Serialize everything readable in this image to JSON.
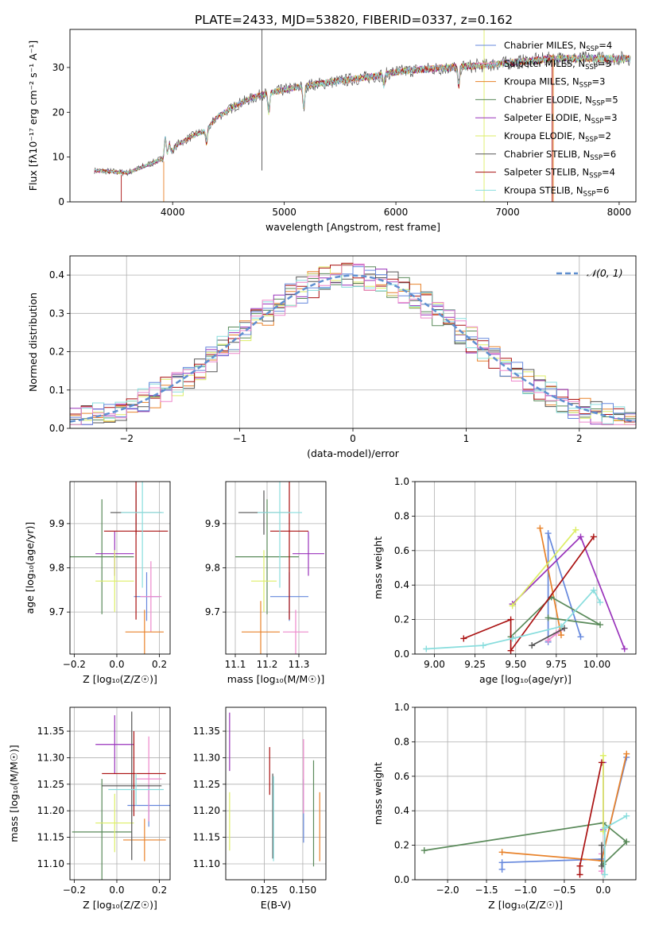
{
  "figure": {
    "title": "PLATE=2433, MJD=53820, FIBERID=0337, z=0.162"
  },
  "models": [
    {
      "name": "Chabrier MILES",
      "nssp": "4",
      "color": "#6688dd"
    },
    {
      "name": "Salpeter MILES",
      "nssp": "3",
      "color": "#ee88cc"
    },
    {
      "name": "Kroupa MILES",
      "nssp": "3",
      "color": "#e8822a"
    },
    {
      "name": "Chabrier ELODIE",
      "nssp": "5",
      "color": "#5a8a5a"
    },
    {
      "name": "Salpeter ELODIE",
      "nssp": "3",
      "color": "#9933bb"
    },
    {
      "name": "Kroupa ELODIE",
      "nssp": "2",
      "color": "#ddee66"
    },
    {
      "name": "Chabrier STELIB",
      "nssp": "6",
      "color": "#555555"
    },
    {
      "name": "Salpeter STELIB",
      "nssp": "4",
      "color": "#aa1111"
    },
    {
      "name": "Kroupa STELIB",
      "nssp": "6",
      "color": "#88dddd"
    }
  ],
  "chart_data": [
    {
      "id": "spectrum",
      "type": "line",
      "xlabel": "wavelength [Angstrom, rest frame]",
      "ylabel": "Flux [fλ10⁻¹⁷ erg cm⁻² s⁻¹ A⁻¹]",
      "xlim": [
        3080,
        8150
      ],
      "ylim": [
        0,
        38.5
      ],
      "xticks": [
        4000,
        5000,
        6000,
        7000,
        8000
      ],
      "yticks": [
        0,
        10,
        20,
        30
      ],
      "continuum": {
        "x": [
          3300,
          3600,
          3700,
          3850,
          3950,
          4050,
          4200,
          4300,
          4400,
          4600,
          4800,
          5000,
          5200,
          5500,
          5800,
          6000,
          6200,
          6500,
          6800,
          7000,
          7200,
          7400,
          7600,
          7800,
          8000,
          8100
        ],
        "y": [
          7,
          6.5,
          7.5,
          9,
          10,
          13,
          15,
          16,
          19,
          22,
          24,
          25,
          26,
          27,
          28,
          29,
          29.5,
          30,
          30.5,
          31,
          31.5,
          32,
          32,
          32,
          32,
          32
        ]
      },
      "absorption_lines": [
        {
          "x": 3934,
          "y": 14.5
        },
        {
          "x": 3969,
          "y": 13
        },
        {
          "x": 4102,
          "y": 13.5
        },
        {
          "x": 4304,
          "y": 13
        },
        {
          "x": 4861,
          "y": 20
        },
        {
          "x": 5175,
          "y": 21
        },
        {
          "x": 5893,
          "y": 26
        },
        {
          "x": 6563,
          "y": 26
        }
      ]
    },
    {
      "id": "residual-hist",
      "type": "line",
      "xlabel": "(data-model)/error",
      "ylabel": "Normed distribution",
      "xlim": [
        -2.5,
        2.5
      ],
      "ylim": [
        0,
        0.45
      ],
      "xticks": [
        -2,
        -1,
        0,
        1,
        2
      ],
      "yticks": [
        0.0,
        0.1,
        0.2,
        0.3,
        0.4
      ],
      "legend": "𝒩(0, 1)",
      "legend_position": "top-right",
      "bin_width": 0.1
    },
    {
      "id": "z-vs-age",
      "type": "scatter",
      "xlabel": "Z [log₁₀(Z/Z☉)]",
      "ylabel": "age  [log₁₀(age/yr)]",
      "xlim": [
        -0.22,
        0.25
      ],
      "ylim": [
        9.605,
        9.995
      ],
      "xticks": [
        -0.2,
        0.0,
        0.2
      ],
      "yticks": [
        9.7,
        9.8,
        9.9
      ],
      "points": [
        {
          "m": 0,
          "x": 0.14,
          "y": 9.735,
          "xerr": 0.06,
          "yerr": 0.055
        },
        {
          "m": 1,
          "x": 0.16,
          "y": 9.735,
          "xerr": 0.05,
          "yerr": 0.08
        },
        {
          "m": 2,
          "x": 0.13,
          "y": 9.655,
          "xerr": 0.09,
          "yerr": 0.05
        },
        {
          "m": 3,
          "x": -0.07,
          "y": 9.825,
          "xerr": 0.15,
          "yerr": 0.13
        },
        {
          "m": 4,
          "x": -0.01,
          "y": 9.832,
          "xerr": 0.09,
          "yerr": 0.05
        },
        {
          "m": 5,
          "x": -0.01,
          "y": 9.77,
          "xerr": 0.09,
          "yerr": 0.07
        },
        {
          "m": 6,
          "x": 0.09,
          "y": 9.925,
          "xerr": 0.12,
          "yerr": 0.05
        },
        {
          "m": 7,
          "x": 0.09,
          "y": 9.883,
          "xerr": 0.15,
          "yerr": 0.2
        },
        {
          "m": 8,
          "x": 0.12,
          "y": 9.925,
          "xerr": 0.1,
          "yerr": 0.17
        }
      ]
    },
    {
      "id": "mass-vs-age",
      "type": "scatter",
      "xlabel": "mass [log₁₀(M/M☉)]",
      "ylabel": "",
      "xlim": [
        11.07,
        11.385
      ],
      "ylim": [
        9.605,
        9.995
      ],
      "xticks": [
        11.1,
        11.2,
        11.3
      ],
      "yticks": [
        9.7,
        9.8,
        9.9
      ],
      "points": [
        {
          "m": 0,
          "x": 11.27,
          "y": 9.735,
          "xerr": 0.06,
          "yerr": 0.055
        },
        {
          "m": 1,
          "x": 11.29,
          "y": 9.655,
          "xerr": 0.04,
          "yerr": 0.05
        },
        {
          "m": 2,
          "x": 11.18,
          "y": 9.655,
          "xerr": 0.06,
          "yerr": 0.07
        },
        {
          "m": 3,
          "x": 11.2,
          "y": 9.825,
          "xerr": 0.1,
          "yerr": 0.13
        },
        {
          "m": 4,
          "x": 11.33,
          "y": 9.832,
          "xerr": 0.05,
          "yerr": 0.05
        },
        {
          "m": 5,
          "x": 11.19,
          "y": 9.77,
          "xerr": 0.04,
          "yerr": 0.07
        },
        {
          "m": 6,
          "x": 11.19,
          "y": 9.925,
          "xerr": 0.08,
          "yerr": 0.05
        },
        {
          "m": 7,
          "x": 11.27,
          "y": 9.883,
          "xerr": 0.06,
          "yerr": 0.2
        },
        {
          "m": 8,
          "x": 11.24,
          "y": 9.925,
          "xerr": 0.07,
          "yerr": 0.17
        }
      ]
    },
    {
      "id": "age-vs-weight",
      "type": "line",
      "xlabel": "age  [log₁₀(age/yr)]",
      "ylabel": "mass weight",
      "xlim": [
        8.88,
        10.24
      ],
      "ylim": [
        0,
        1
      ],
      "xticks": [
        9.0,
        9.25,
        9.5,
        9.75,
        10.0
      ],
      "yticks": [
        0.0,
        0.2,
        0.4,
        0.6,
        0.8,
        1.0
      ],
      "series": [
        {
          "m": 0,
          "x": [
            9.7,
            9.7,
            9.9
          ],
          "y": [
            0.07,
            0.7,
            0.1
          ]
        },
        {
          "m": 1,
          "x": [
            9.75,
            9.78,
            9.7
          ],
          "y": [
            0.12,
            0.14,
            0.08
          ]
        },
        {
          "m": 2,
          "x": [
            9.65,
            9.78
          ],
          "y": [
            0.73,
            0.11
          ]
        },
        {
          "m": 3,
          "x": [
            9.47,
            9.72,
            10.02,
            9.7
          ],
          "y": [
            0.1,
            0.33,
            0.17,
            0.21
          ]
        },
        {
          "m": 4,
          "x": [
            9.48,
            9.9,
            10.17
          ],
          "y": [
            0.29,
            0.68,
            0.03
          ]
        },
        {
          "m": 5,
          "x": [
            9.48,
            9.87
          ],
          "y": [
            0.28,
            0.72
          ]
        },
        {
          "m": 6,
          "x": [
            9.6,
            9.8
          ],
          "y": [
            0.05,
            0.15
          ]
        },
        {
          "m": 7,
          "x": [
            9.18,
            9.47,
            9.47,
            9.98
          ],
          "y": [
            0.09,
            0.2,
            0.02,
            0.68
          ]
        },
        {
          "m": 8,
          "x": [
            8.95,
            9.3,
            9.48,
            9.78,
            9.98,
            10.02
          ],
          "y": [
            0.03,
            0.05,
            0.09,
            0.16,
            0.37,
            0.3
          ]
        }
      ]
    },
    {
      "id": "z-vs-mass",
      "type": "scatter",
      "xlabel": "Z [log₁₀(Z/Z☉)]",
      "ylabel": "mass [log₁₀(M/M☉)]",
      "xlim": [
        -0.22,
        0.25
      ],
      "ylim": [
        11.07,
        11.395
      ],
      "xticks": [
        -0.2,
        0.0,
        0.2
      ],
      "yticks": [
        11.1,
        11.15,
        11.2,
        11.25,
        11.3,
        11.35
      ],
      "points": [
        {
          "m": 0,
          "x": 0.15,
          "y": 11.21,
          "xerr": 0.1,
          "yerr": 0.04
        },
        {
          "m": 1,
          "x": 0.15,
          "y": 11.26,
          "xerr": 0.06,
          "yerr": 0.08
        },
        {
          "m": 2,
          "x": 0.13,
          "y": 11.145,
          "xerr": 0.1,
          "yerr": 0.04
        },
        {
          "m": 3,
          "x": -0.07,
          "y": 11.16,
          "xerr": 0.14,
          "yerr": 0.1
        },
        {
          "m": 4,
          "x": -0.01,
          "y": 11.325,
          "xerr": 0.09,
          "yerr": 0.055
        },
        {
          "m": 5,
          "x": -0.01,
          "y": 11.177,
          "xerr": 0.09,
          "yerr": 0.055
        },
        {
          "m": 6,
          "x": 0.07,
          "y": 11.247,
          "xerr": 0.14,
          "yerr": 0.14
        },
        {
          "m": 7,
          "x": 0.08,
          "y": 11.27,
          "xerr": 0.15,
          "yerr": 0.08
        },
        {
          "m": 8,
          "x": 0.09,
          "y": 11.24,
          "xerr": 0.13,
          "yerr": 0.03
        }
      ]
    },
    {
      "id": "ebv-vs-mass",
      "type": "scatter",
      "xlabel": "E(B-V)",
      "ylabel": "",
      "xlim": [
        0.1,
        0.165
      ],
      "ylim": [
        11.07,
        11.395
      ],
      "xticks": [
        0.125,
        0.15
      ],
      "yticks": [
        11.1,
        11.15,
        11.2,
        11.25,
        11.3,
        11.35
      ],
      "points": [
        {
          "m": 0,
          "x": 0.1505,
          "y": 11.2,
          "xerr": 0,
          "yerr": 0.06
        },
        {
          "m": 1,
          "x": 0.1505,
          "y": 11.265,
          "xerr": 0,
          "yerr": 0.07
        },
        {
          "m": 2,
          "x": 0.161,
          "y": 11.17,
          "xerr": 0,
          "yerr": 0.065
        },
        {
          "m": 3,
          "x": 0.157,
          "y": 11.195,
          "xerr": 0,
          "yerr": 0.1
        },
        {
          "m": 4,
          "x": 0.1025,
          "y": 11.33,
          "xerr": 0,
          "yerr": 0.055
        },
        {
          "m": 5,
          "x": 0.1025,
          "y": 11.18,
          "xerr": 0,
          "yerr": 0.055
        },
        {
          "m": 6,
          "x": 0.1305,
          "y": 11.19,
          "xerr": 0,
          "yerr": 0.08
        },
        {
          "m": 7,
          "x": 0.1285,
          "y": 11.275,
          "xerr": 0,
          "yerr": 0.045
        },
        {
          "m": 8,
          "x": 0.131,
          "y": 11.185,
          "xerr": 0,
          "yerr": 0.08
        }
      ]
    },
    {
      "id": "z-vs-weight",
      "type": "line",
      "xlabel": "Z [log₁₀(Z/Z☉)]",
      "ylabel": "mass weight",
      "xlim": [
        -2.42,
        0.42
      ],
      "ylim": [
        0,
        1
      ],
      "xticks": [
        -2.0,
        -1.5,
        -1.0,
        -0.5,
        0.0
      ],
      "yticks": [
        0.0,
        0.2,
        0.4,
        0.6,
        0.8,
        1.0
      ],
      "series": [
        {
          "m": 0,
          "x": [
            -1.3,
            -1.3,
            -0.02,
            0.3
          ],
          "y": [
            0.06,
            0.1,
            0.12,
            0.71
          ]
        },
        {
          "m": 1,
          "x": [
            -0.02,
            -0.02
          ],
          "y": [
            0.05,
            0.15
          ]
        },
        {
          "m": 2,
          "x": [
            -1.3,
            -0.02,
            0.3
          ],
          "y": [
            0.16,
            0.11,
            0.73
          ]
        },
        {
          "m": 3,
          "x": [
            -2.3,
            0.0,
            0.3,
            0.0
          ],
          "y": [
            0.17,
            0.33,
            0.22,
            0.09
          ]
        },
        {
          "m": 4,
          "x": [
            0.0,
            0.0
          ],
          "y": [
            0.29,
            0.68
          ]
        },
        {
          "m": 5,
          "x": [
            0.0,
            0.0
          ],
          "y": [
            0.28,
            0.72
          ]
        },
        {
          "m": 6,
          "x": [
            -0.02,
            -0.02
          ],
          "y": [
            0.08,
            0.2
          ]
        },
        {
          "m": 7,
          "x": [
            -0.3,
            -0.3,
            -0.02
          ],
          "y": [
            0.03,
            0.08,
            0.68
          ]
        },
        {
          "m": 8,
          "x": [
            0.02,
            0.02,
            0.3
          ],
          "y": [
            0.03,
            0.3,
            0.37
          ]
        }
      ]
    }
  ]
}
